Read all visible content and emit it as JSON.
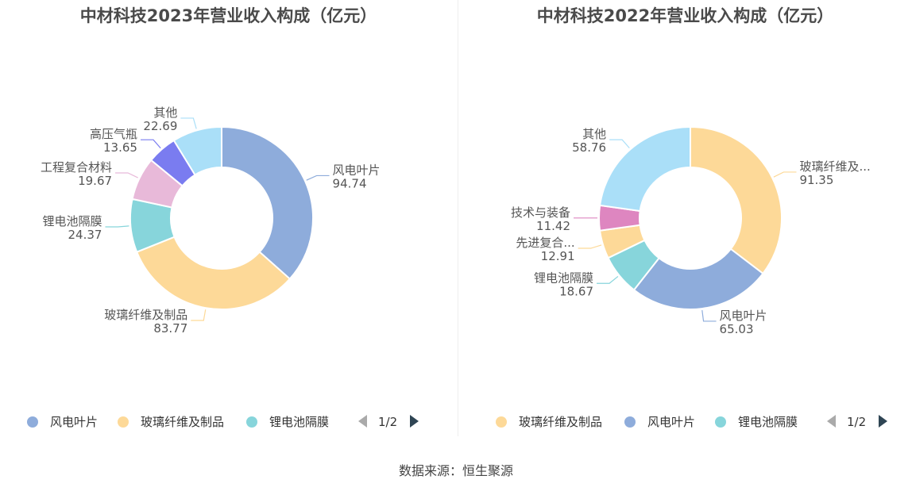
{
  "source": "数据来源：恒生聚源",
  "charts": [
    {
      "title": "中材科技2023年营业收入构成（亿元）",
      "pager": "1/2",
      "legend": [
        "风电叶片",
        "玻璃纤维及制品",
        "锂电池隔膜"
      ]
    },
    {
      "title": "中材科技2022年营业收入构成（亿元）",
      "pager": "1/2",
      "legend": [
        "玻璃纤维及制品",
        "风电叶片",
        "锂电池隔膜"
      ]
    }
  ],
  "chart_data": [
    {
      "type": "pie",
      "title": "中材科技2023年营业收入构成（亿元）",
      "donut": true,
      "legend_position": "bottom",
      "slices": [
        {
          "name": "风电叶片",
          "label": "风电叶片",
          "value": 94.74,
          "color": "#8eacdb"
        },
        {
          "name": "玻璃纤维及制品",
          "label": "玻璃纤维及制品",
          "value": 83.77,
          "color": "#fdd998"
        },
        {
          "name": "锂电池隔膜",
          "label": "锂电池隔膜",
          "value": 24.37,
          "color": "#87d5db"
        },
        {
          "name": "工程复合材料",
          "label": "工程复合材料",
          "value": 19.67,
          "color": "#e8b9d9"
        },
        {
          "name": "高压气瓶",
          "label": "高压气瓶",
          "value": 13.65,
          "color": "#7a7cf0"
        },
        {
          "name": "其他",
          "label": "其他",
          "value": 22.69,
          "color": "#aadff8"
        }
      ]
    },
    {
      "type": "pie",
      "title": "中材科技2022年营业收入构成（亿元）",
      "donut": true,
      "legend_position": "bottom",
      "slices": [
        {
          "name": "玻璃纤维及制品",
          "label": "玻璃纤维及...",
          "value": 91.35,
          "color": "#fdd998"
        },
        {
          "name": "风电叶片",
          "label": "风电叶片",
          "value": 65.03,
          "color": "#8eacdb"
        },
        {
          "name": "锂电池隔膜",
          "label": "锂电池隔膜",
          "value": 18.67,
          "color": "#87d5db"
        },
        {
          "name": "先进复合材料",
          "label": "先进复合...",
          "value": 12.91,
          "color": "#fdd998"
        },
        {
          "name": "技术与装备",
          "label": "技术与装备",
          "value": 11.42,
          "color": "#de86c0"
        },
        {
          "name": "其他",
          "label": "其他",
          "value": 58.76,
          "color": "#aadff8"
        }
      ]
    }
  ]
}
